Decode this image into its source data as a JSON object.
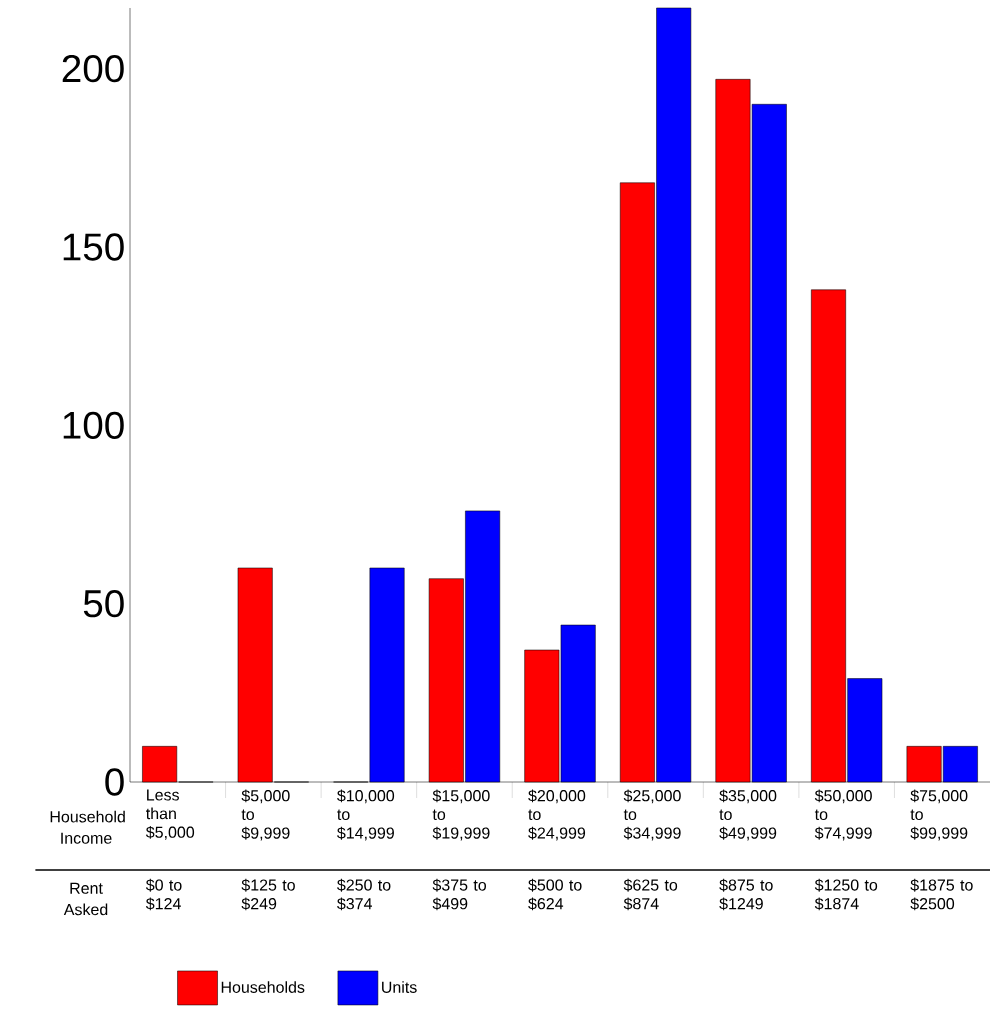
{
  "chart_data": {
    "type": "bar",
    "categories": [
      "Less than $5,000",
      "$5,000 to $9,999",
      "$10,000 to $14,999",
      "$15,000 to $19,999",
      "$20,000 to $24,999",
      "$25,000 to $34,999",
      "$35,000 to $49,999",
      "$50,000 to $74,999",
      "$75,000 to $99,999"
    ],
    "series": [
      {
        "name": "Households",
        "color": "#ff0000",
        "values": [
          10,
          60,
          0,
          57,
          37,
          168,
          197,
          138,
          10
        ]
      },
      {
        "name": "Units",
        "color": "#0000ff",
        "values": [
          0,
          0,
          60,
          76,
          44,
          217,
          190,
          29,
          10
        ]
      }
    ],
    "xlabel": "Household Income",
    "annotations": [
      "Rent Asked",
      "$0 to $124",
      "$125 to $249",
      "$250 to $374",
      "$375 to $499",
      "$500 to $624",
      "$625 to $874",
      "$875 to $1249",
      "$1250 to $1874",
      "$1875 to $2500"
    ],
    "ylim": [
      0,
      217
    ],
    "yticks": [
      0,
      50,
      100,
      150,
      200
    ],
    "grid": false,
    "legend": "bottom"
  }
}
